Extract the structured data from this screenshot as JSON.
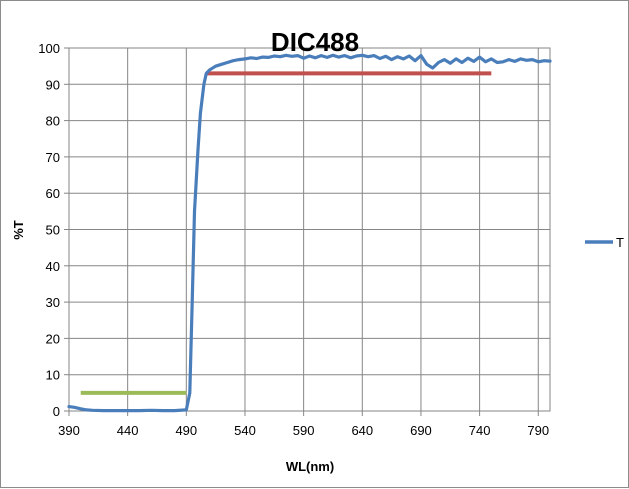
{
  "chart_data": {
    "type": "line",
    "title": "DIC488",
    "xlabel": "WL(nm)",
    "ylabel": "%T",
    "xlim": [
      390,
      800
    ],
    "ylim": [
      0,
      100
    ],
    "x_ticks": [
      390,
      440,
      490,
      540,
      590,
      640,
      690,
      740,
      790
    ],
    "y_ticks": [
      0,
      10,
      20,
      30,
      40,
      50,
      60,
      70,
      80,
      90,
      100
    ],
    "y_tick_labels": [
      "0",
      "10",
      "20",
      "30",
      "40",
      "50",
      "60",
      "70",
      "80",
      "90",
      "100"
    ],
    "grid": true,
    "legend_position": "right",
    "series": [
      {
        "name": "T",
        "color": "#4a7ebb",
        "x": [
          390,
          395,
          400,
          405,
          410,
          420,
          430,
          440,
          450,
          460,
          470,
          480,
          490,
          493,
          495,
          497,
          500,
          502,
          505,
          507,
          510,
          515,
          520,
          525,
          530,
          535,
          540,
          545,
          550,
          555,
          560,
          565,
          570,
          575,
          580,
          585,
          590,
          595,
          600,
          605,
          610,
          615,
          620,
          625,
          630,
          635,
          640,
          645,
          650,
          655,
          660,
          665,
          670,
          675,
          680,
          685,
          690,
          695,
          700,
          705,
          710,
          715,
          720,
          725,
          730,
          735,
          740,
          745,
          750,
          755,
          760,
          765,
          770,
          775,
          780,
          785,
          790,
          795,
          800
        ],
        "y": [
          1.2,
          1.0,
          0.6,
          0.3,
          0.2,
          0.1,
          0.1,
          0.1,
          0.1,
          0.2,
          0.1,
          0.1,
          0.3,
          5,
          30,
          55,
          72,
          82,
          90,
          93,
          94,
          95,
          95.5,
          96,
          96.5,
          96.8,
          97,
          97.3,
          97.1,
          97.5,
          97.4,
          97.8,
          97.6,
          98,
          97.7,
          97.9,
          97.2,
          97.8,
          97.3,
          97.9,
          97.4,
          98,
          97.5,
          97.9,
          97.3,
          97.8,
          98,
          97.6,
          97.9,
          97.1,
          97.7,
          96.8,
          97.6,
          97,
          97.8,
          96.5,
          97.9,
          95.5,
          94.5,
          96,
          96.8,
          95.8,
          97,
          96,
          97.2,
          96.3,
          97.5,
          96.2,
          97,
          96,
          96.2,
          96.8,
          96.3,
          97,
          96.6,
          96.8,
          96.2,
          96.5,
          96.4
        ]
      }
    ],
    "annotations": [
      {
        "type": "segment",
        "color": "#9bbb59",
        "x": [
          400,
          490
        ],
        "y": [
          5,
          5
        ]
      },
      {
        "type": "segment",
        "color": "#c0504d",
        "x": [
          507,
          750
        ],
        "y": [
          93,
          93
        ]
      }
    ]
  }
}
